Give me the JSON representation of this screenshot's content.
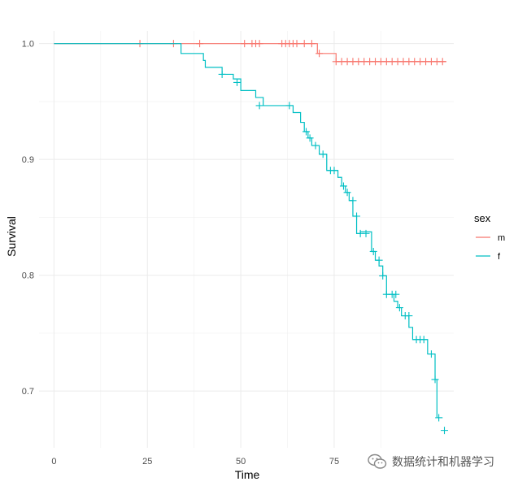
{
  "chart_data": {
    "type": "line",
    "subtype": "kaplan-meier-step",
    "xlabel": "Time",
    "ylabel": "Survival",
    "xlim": [
      -4,
      107
    ],
    "ylim": [
      0.651,
      1.011
    ],
    "x_ticks": [
      0,
      25,
      50,
      75
    ],
    "y_ticks": [
      0.7,
      0.8,
      0.9,
      1.0
    ],
    "x_tick_labels": [
      "0",
      "25",
      "50",
      "75"
    ],
    "y_tick_labels": [
      "0.7",
      "0.8",
      "0.9",
      "1.0"
    ],
    "grid": true,
    "legend": {
      "title": "sex",
      "position": "right"
    },
    "series": [
      {
        "name": "m",
        "color": "#F8766D",
        "steps": [
          [
            0,
            1.0
          ],
          [
            70.5,
            0.9915
          ],
          [
            75.5,
            0.9845
          ],
          [
            105,
            0.9845
          ]
        ],
        "censored": [
          [
            23,
            1.0
          ],
          [
            32,
            1.0
          ],
          [
            39,
            1.0
          ],
          [
            51,
            1.0
          ],
          [
            53,
            1.0
          ],
          [
            54,
            1.0
          ],
          [
            55,
            1.0
          ],
          [
            61,
            1.0
          ],
          [
            62,
            1.0
          ],
          [
            63,
            1.0
          ],
          [
            64,
            1.0
          ],
          [
            65,
            1.0
          ],
          [
            67,
            1.0
          ],
          [
            69,
            1.0
          ],
          [
            71,
            0.9915
          ],
          [
            75.5,
            0.9845
          ],
          [
            77,
            0.9845
          ],
          [
            78.5,
            0.9845
          ],
          [
            80,
            0.9845
          ],
          [
            81.5,
            0.9845
          ],
          [
            83,
            0.9845
          ],
          [
            84.5,
            0.9845
          ],
          [
            86,
            0.9845
          ],
          [
            87.5,
            0.9845
          ],
          [
            89,
            0.9845
          ],
          [
            90.5,
            0.9845
          ],
          [
            92,
            0.9845
          ],
          [
            93.5,
            0.9845
          ],
          [
            95,
            0.9845
          ],
          [
            96.5,
            0.9845
          ],
          [
            98,
            0.9845
          ],
          [
            99.5,
            0.9845
          ],
          [
            101,
            0.9845
          ],
          [
            102.5,
            0.9845
          ],
          [
            104,
            0.9845
          ]
        ]
      },
      {
        "name": "f",
        "color": "#00BFC4",
        "steps": [
          [
            0,
            1.0
          ],
          [
            34,
            0.9915
          ],
          [
            40,
            0.9855
          ],
          [
            40.5,
            0.9795
          ],
          [
            45,
            0.9735
          ],
          [
            48,
            0.9695
          ],
          [
            50,
            0.9595
          ],
          [
            54,
            0.9535
          ],
          [
            56,
            0.9465
          ],
          [
            64,
            0.9405
          ],
          [
            66,
            0.932
          ],
          [
            67,
            0.924
          ],
          [
            68,
            0.9185
          ],
          [
            69,
            0.912
          ],
          [
            71,
            0.9045
          ],
          [
            73,
            0.8905
          ],
          [
            76,
            0.8845
          ],
          [
            77,
            0.877
          ],
          [
            78,
            0.8715
          ],
          [
            79,
            0.8645
          ],
          [
            80,
            0.851
          ],
          [
            81,
            0.836
          ],
          [
            82,
            0.8375
          ],
          [
            85,
            0.8205
          ],
          [
            86,
            0.813
          ],
          [
            87,
            0.808
          ],
          [
            88,
            0.7995
          ],
          [
            89,
            0.7835
          ],
          [
            91,
            0.7775
          ],
          [
            92,
            0.772
          ],
          [
            93,
            0.765
          ],
          [
            95,
            0.755
          ],
          [
            96,
            0.7445
          ],
          [
            100,
            0.732
          ],
          [
            102,
            0.71
          ],
          [
            102.5,
            0.677
          ],
          [
            104,
            0.677
          ]
        ],
        "censored": [
          [
            45,
            0.9735
          ],
          [
            49,
            0.9665
          ],
          [
            55,
            0.9465
          ],
          [
            63,
            0.9465
          ],
          [
            67.5,
            0.924
          ],
          [
            68.5,
            0.9185
          ],
          [
            70,
            0.912
          ],
          [
            72,
            0.9045
          ],
          [
            74,
            0.8905
          ],
          [
            75,
            0.8905
          ],
          [
            77.5,
            0.877
          ],
          [
            78.5,
            0.8715
          ],
          [
            80,
            0.8645
          ],
          [
            81,
            0.851
          ],
          [
            82,
            0.836
          ],
          [
            83.5,
            0.836
          ],
          [
            85.5,
            0.8205
          ],
          [
            87,
            0.813
          ],
          [
            88,
            0.7995
          ],
          [
            89,
            0.7835
          ],
          [
            90.5,
            0.7835
          ],
          [
            91.5,
            0.7835
          ],
          [
            92.5,
            0.772
          ],
          [
            94,
            0.765
          ],
          [
            95,
            0.765
          ],
          [
            97,
            0.7445
          ],
          [
            98,
            0.7445
          ],
          [
            99,
            0.7445
          ],
          [
            101,
            0.732
          ],
          [
            102,
            0.71
          ],
          [
            103,
            0.677
          ],
          [
            104.5,
            0.666
          ]
        ]
      }
    ]
  },
  "watermark": {
    "icon": "wechat-icon",
    "text": "数据统计和机器学习"
  }
}
